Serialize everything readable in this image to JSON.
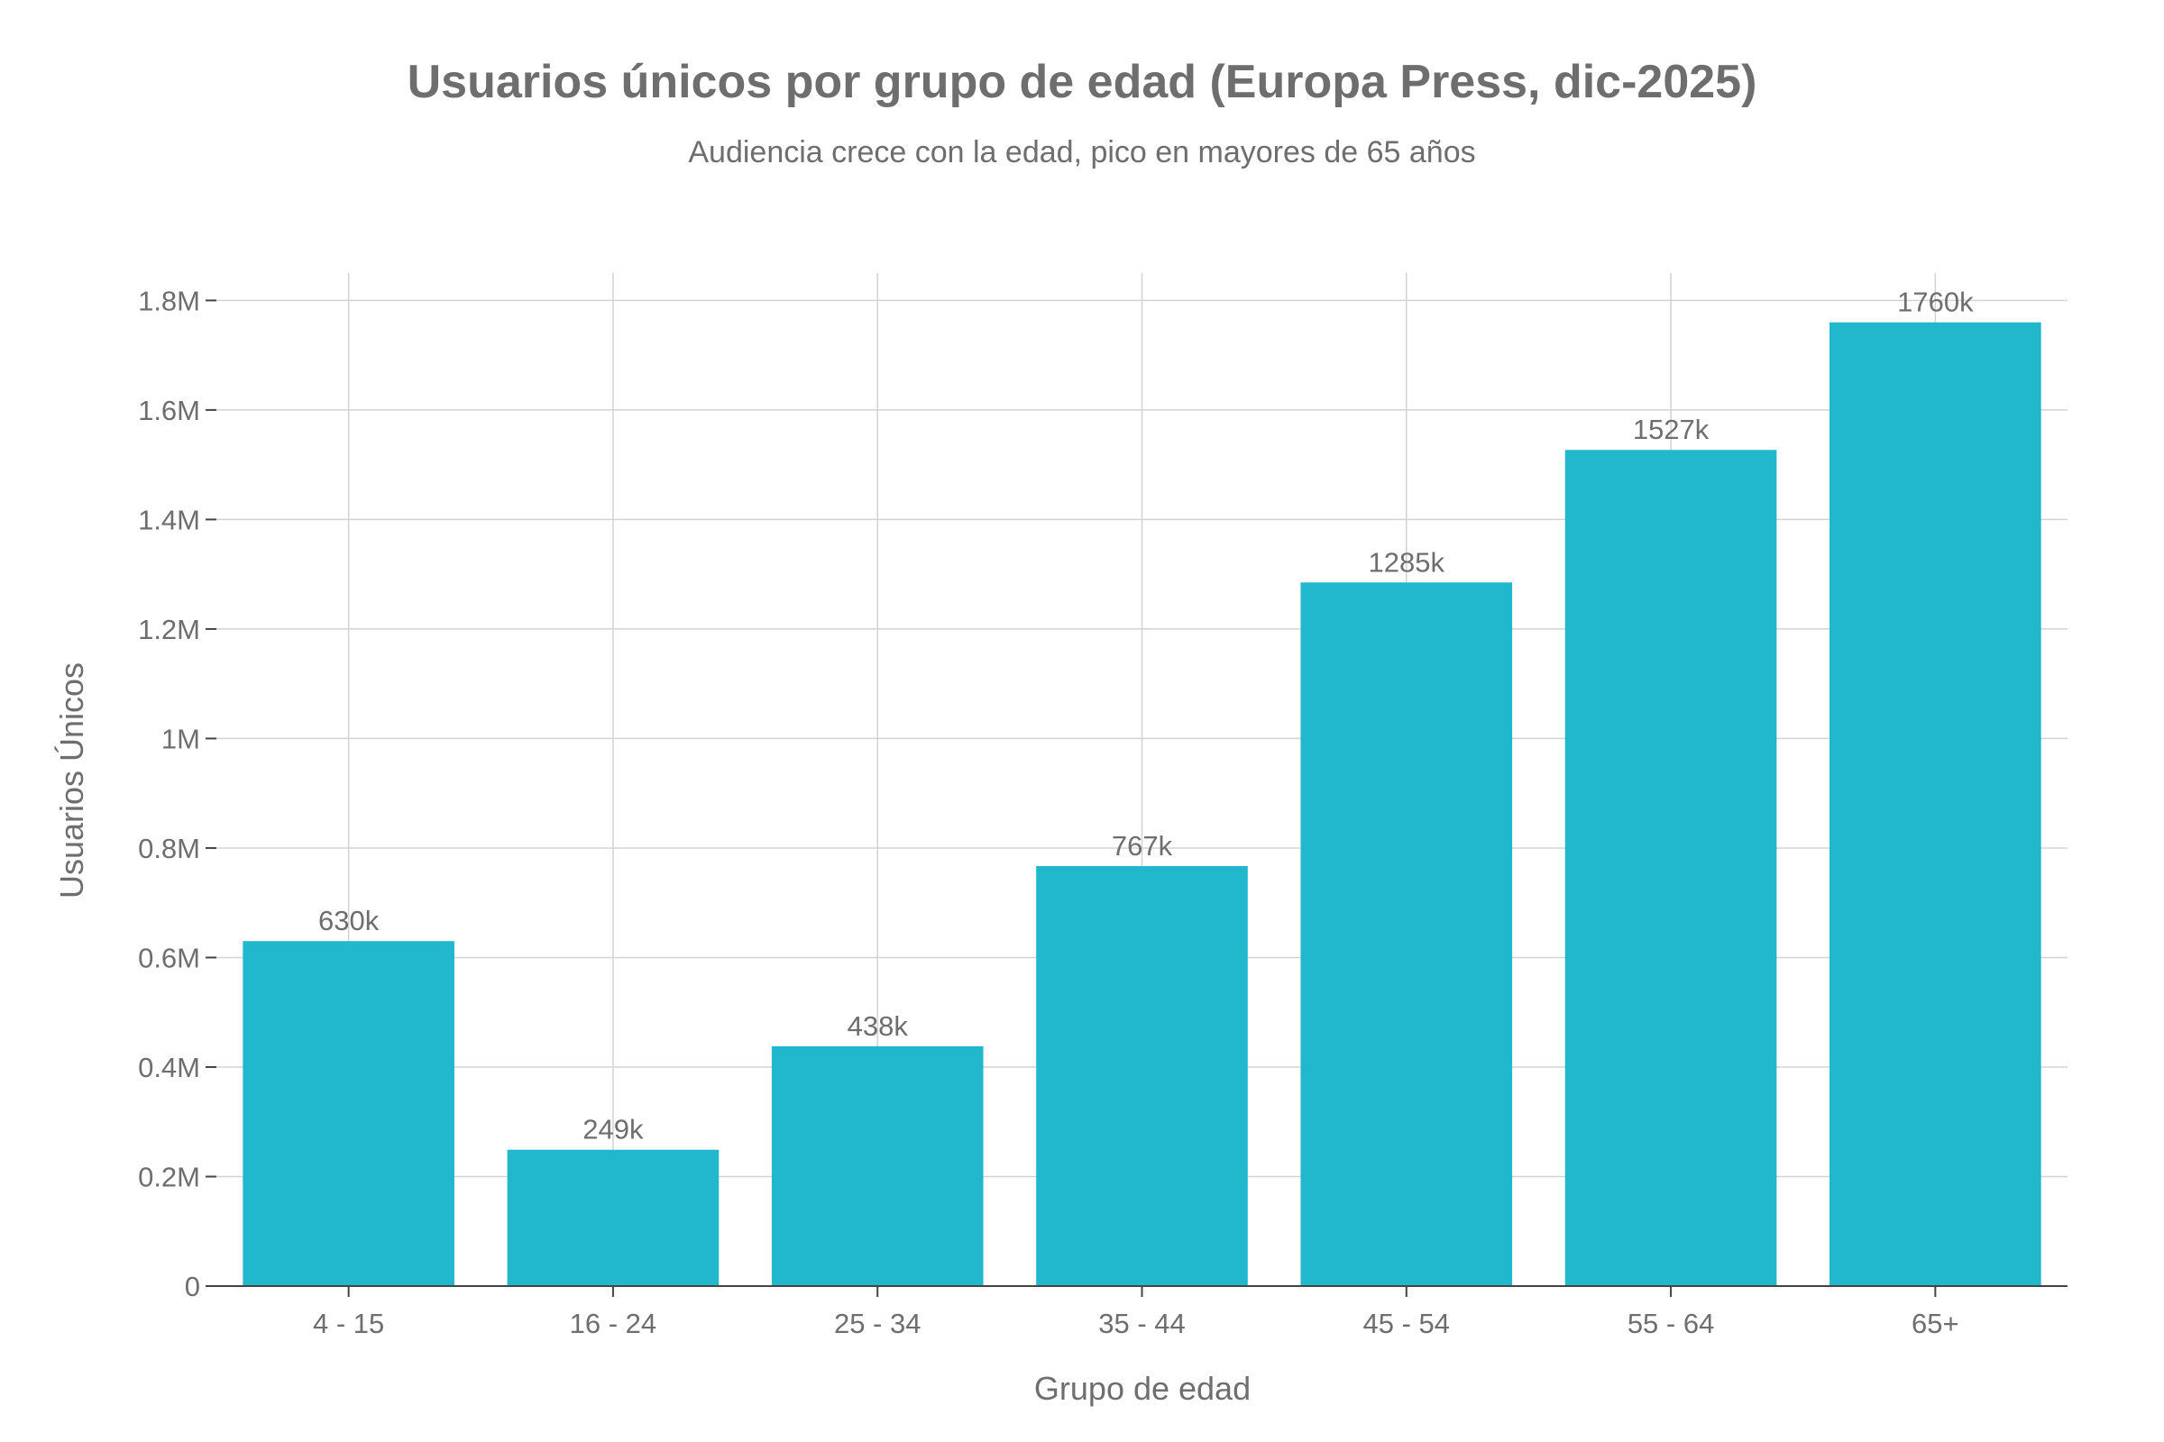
{
  "chart_data": {
    "type": "bar",
    "title": "Usuarios únicos por grupo de edad (Europa Press, dic-2025)",
    "subtitle": "Audiencia crece con la edad, pico en mayores de 65 años",
    "xlabel": "Grupo de edad",
    "ylabel": "Usuarios Únicos",
    "categories": [
      "4 - 15",
      "16 - 24",
      "25 - 34",
      "35 - 44",
      "45 - 54",
      "55 - 64",
      "65+"
    ],
    "values": [
      630000,
      249000,
      438000,
      767000,
      1285000,
      1527000,
      1760000
    ],
    "data_labels": [
      "630k",
      "249k",
      "438k",
      "767k",
      "1285k",
      "1527k",
      "1760k"
    ],
    "ylim": [
      0,
      1850000
    ],
    "yticks": [
      0,
      200000,
      400000,
      600000,
      800000,
      1000000,
      1200000,
      1400000,
      1600000,
      1800000
    ],
    "ytick_labels": [
      "0",
      "0.2M",
      "0.4M",
      "0.6M",
      "0.8M",
      "1M",
      "1.2M",
      "1.4M",
      "1.6M",
      "1.8M"
    ],
    "grid": true,
    "bar_color": "#21b7cc"
  }
}
